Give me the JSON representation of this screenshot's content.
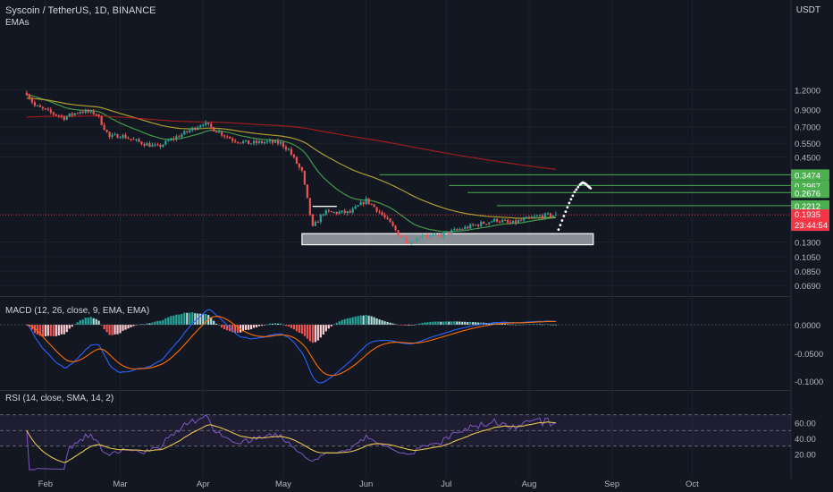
{
  "header": {
    "symbol_line": "Syscoin / TetherUS, 1D, BINANCE",
    "indicator": "EMAs",
    "currency": "USDT"
  },
  "macd_label": "MACD (12, 26, close, 9, EMA, EMA)",
  "rsi_label": "RSI (14, close, SMA, 14, 2)",
  "colors": {
    "background": "#131722",
    "up": "#26a69a",
    "down": "#ef5350",
    "level_line": "#4caf50",
    "level_badge": "#4caf50",
    "price_badge": "#f23645",
    "ema_fast": "#4caf50",
    "ema_mid": "#c9b42e",
    "ema_slow": "#b71c1c",
    "macd": "#2962ff",
    "signal": "#ff6d00",
    "rsi": "#7e57c2",
    "rsi_ma": "#e5c34f",
    "zone": "#b2b5be"
  },
  "chart_data": [
    {
      "type": "candlestick",
      "title": "Syscoin / TetherUS, 1D, BINANCE",
      "x_ticks": [
        "Feb",
        "Mar",
        "Apr",
        "May",
        "Jun",
        "Jul",
        "Aug",
        "Sep",
        "Oct"
      ],
      "y_scale": "log",
      "y_ticks": [
        "1.2000",
        "0.9000",
        "0.7000",
        "0.5500",
        "0.4500",
        "0.1300",
        "0.1050",
        "0.0850",
        "0.0690"
      ],
      "y_range": [
        0.062,
        1.5
      ],
      "price_path": [
        [
          "Jan 25",
          1.15
        ],
        [
          "Jan 28",
          0.95
        ],
        [
          "Feb 3",
          0.86
        ],
        [
          "Feb 8",
          0.8
        ],
        [
          "Feb 14",
          0.88
        ],
        [
          "Feb 20",
          0.85
        ],
        [
          "Feb 25",
          0.6
        ],
        [
          "Mar 1",
          0.62
        ],
        [
          "Mar 8",
          0.56
        ],
        [
          "Mar 15",
          0.52
        ],
        [
          "Mar 20",
          0.58
        ],
        [
          "Mar 26",
          0.65
        ],
        [
          "Apr 1",
          0.74
        ],
        [
          "Apr 6",
          0.66
        ],
        [
          "Apr 12",
          0.58
        ],
        [
          "Apr 18",
          0.55
        ],
        [
          "Apr 25",
          0.56
        ],
        [
          "Apr 30",
          0.55
        ],
        [
          "May 3",
          0.5
        ],
        [
          "May 8",
          0.36
        ],
        [
          "May 12",
          0.16
        ],
        [
          "May 16",
          0.2
        ],
        [
          "May 21",
          0.2
        ],
        [
          "May 26",
          0.2
        ],
        [
          "Jun 1",
          0.24
        ],
        [
          "Jun 5",
          0.21
        ],
        [
          "Jun 10",
          0.17
        ],
        [
          "Jun 14",
          0.14
        ],
        [
          "Jun 18",
          0.13
        ],
        [
          "Jun 22",
          0.145
        ],
        [
          "Jun 27",
          0.14
        ],
        [
          "Jul 2",
          0.15
        ],
        [
          "Jul 8",
          0.16
        ],
        [
          "Jul 14",
          0.17
        ],
        [
          "Jul 20",
          0.18
        ],
        [
          "Jul 25",
          0.17
        ],
        [
          "Jul 30",
          0.18
        ],
        [
          "Aug 5",
          0.19
        ],
        [
          "Aug 11",
          0.1935
        ]
      ],
      "current_price": "0.1935",
      "countdown": "23:44:54",
      "levels": [
        "0.3474",
        "0.2967",
        "0.2676",
        "0.2212"
      ],
      "support_zone": [
        0.125,
        0.147
      ],
      "projection": "dotted path up to 0.30 near late Aug"
    },
    {
      "type": "line",
      "title": "MACD (12, 26, close, 9, EMA, EMA)",
      "y_ticks": [
        "0.0000",
        "-0.0500",
        "-0.1000"
      ],
      "series": [
        {
          "name": "MACD"
        },
        {
          "name": "Signal"
        },
        {
          "name": "Histogram"
        }
      ]
    },
    {
      "type": "line",
      "title": "RSI (14, close, SMA, 14, 2)",
      "y_ticks": [
        "60.00",
        "40.00",
        "20.00"
      ],
      "bands": [
        30,
        50,
        70
      ],
      "series": [
        {
          "name": "RSI"
        },
        {
          "name": "RSI-based MA"
        }
      ]
    }
  ]
}
